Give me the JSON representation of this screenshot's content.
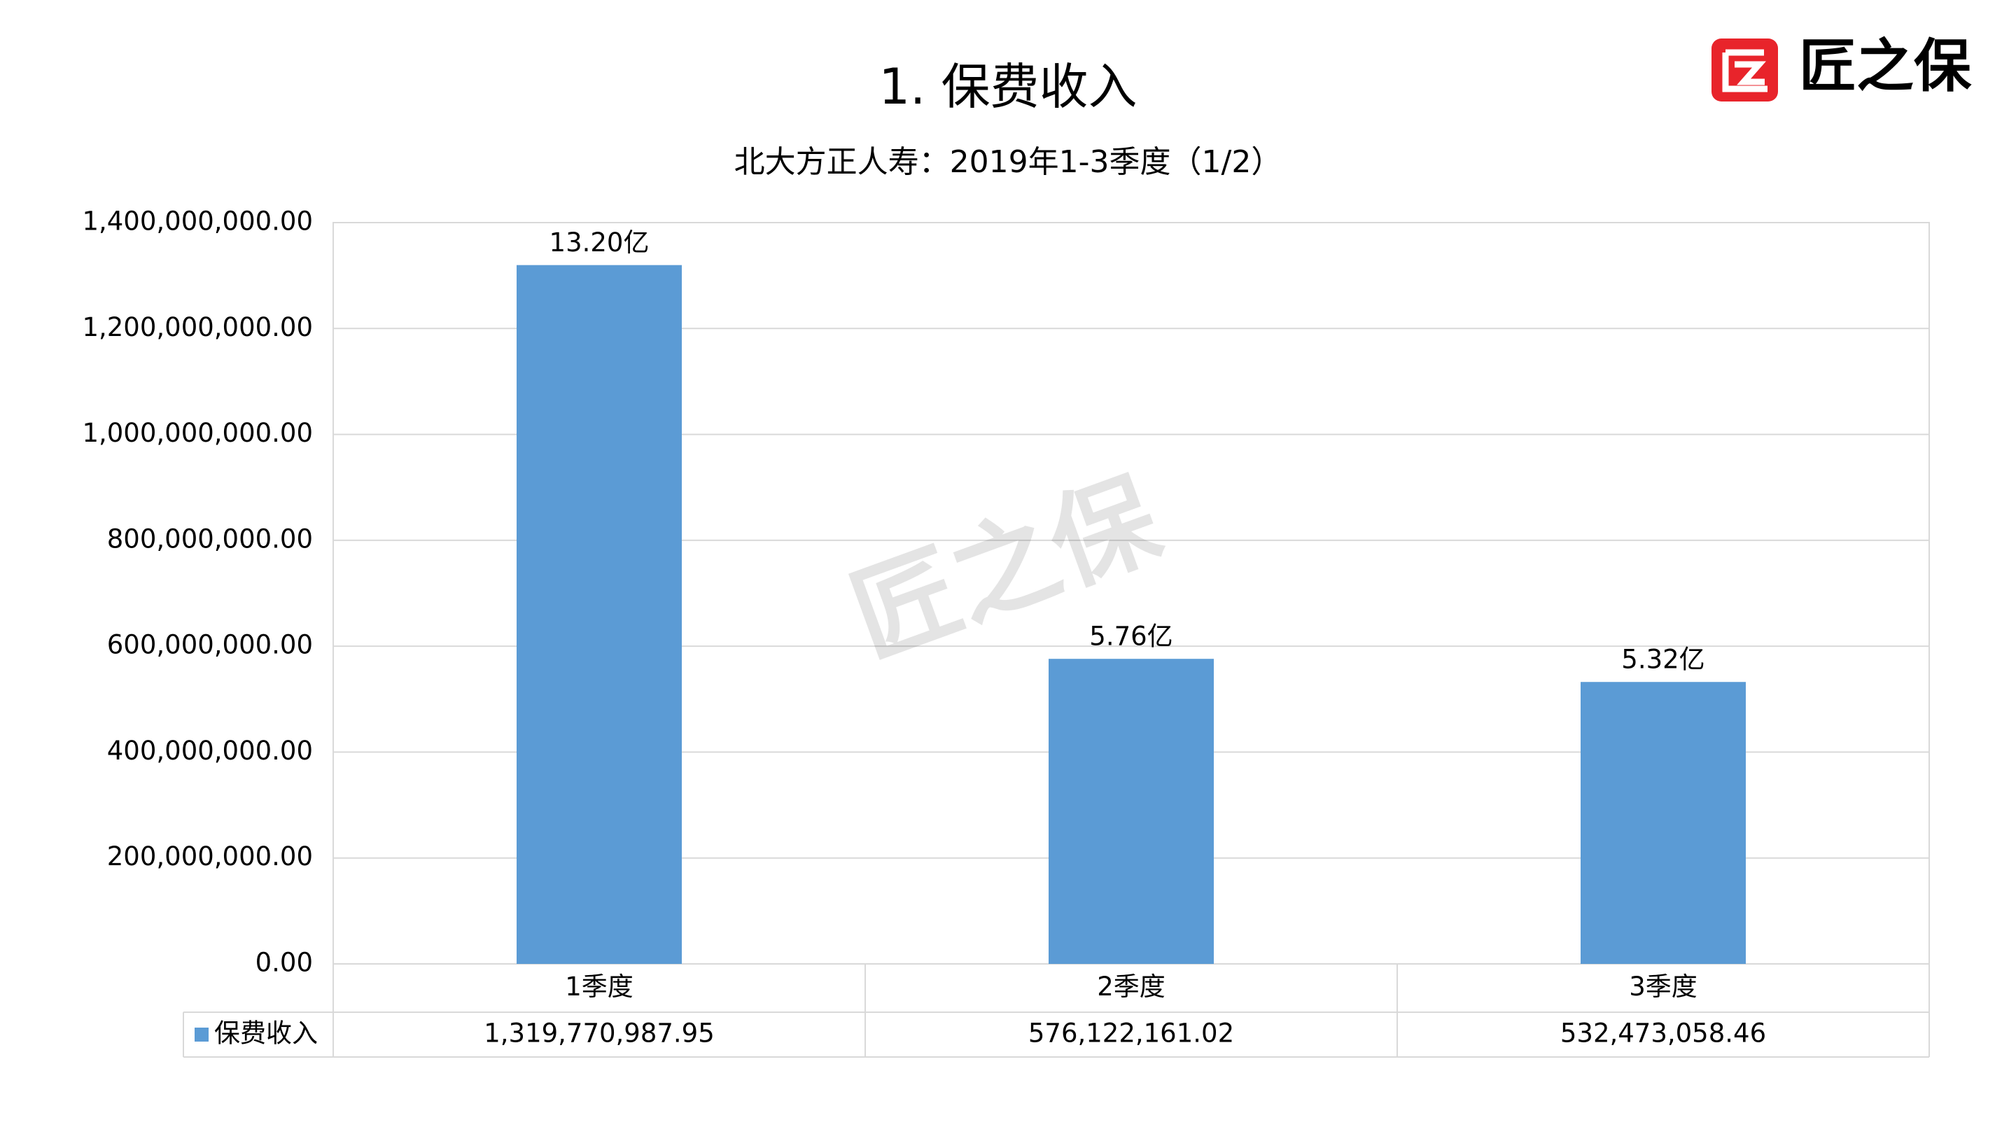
{
  "logo": "匠之保",
  "chart_data": {
    "type": "bar",
    "title": "1.  保费收入",
    "subtitle": "北大方正人寿：2019年1-3季度（1/2）",
    "categories": [
      "1季度",
      "2季度",
      "3季度"
    ],
    "series": [
      {
        "name": "保费收入",
        "color": "#5b9bd5",
        "values": [
          1319770987.95,
          576122161.02,
          532473058.46
        ],
        "value_labels": [
          "13.20亿",
          "5.76亿",
          "5.32亿"
        ],
        "table_labels": [
          "1,319,770,987.95",
          "576,122,161.02",
          "532,473,058.46"
        ]
      }
    ],
    "ylim": [
      0,
      1400000000
    ],
    "yticks": [
      {
        "value": 0,
        "label": "0.00"
      },
      {
        "value": 200000000,
        "label": "200,000,000.00"
      },
      {
        "value": 400000000,
        "label": "400,000,000.00"
      },
      {
        "value": 600000000,
        "label": "600,000,000.00"
      },
      {
        "value": 800000000,
        "label": "800,000,000.00"
      },
      {
        "value": 1000000000,
        "label": "1,000,000,000.00"
      },
      {
        "value": 1200000000,
        "label": "1,200,000,000.00"
      },
      {
        "value": 1400000000,
        "label": "1,400,000,000.00"
      }
    ],
    "grid": true
  }
}
